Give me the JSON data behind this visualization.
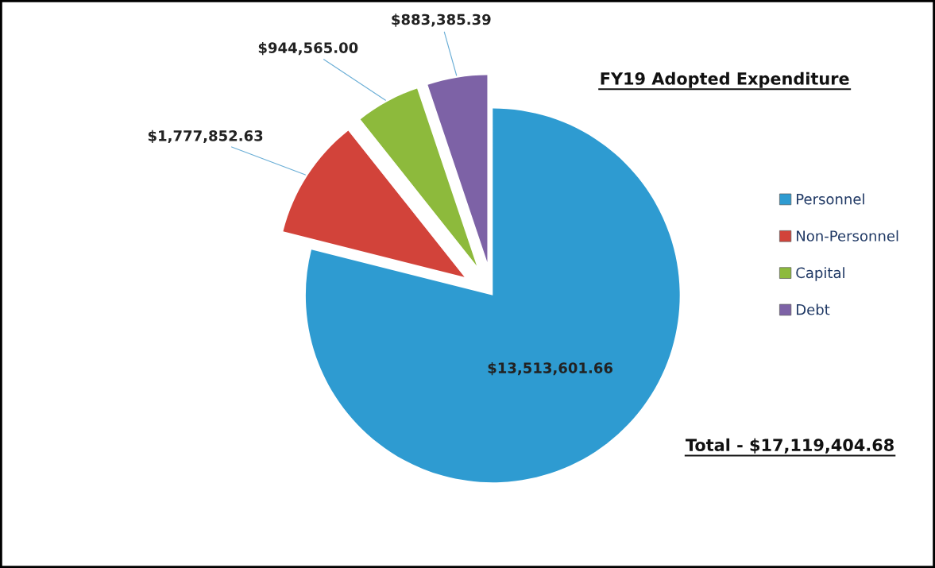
{
  "chart_data": {
    "type": "pie",
    "title": "FY19 Adopted Expenditure",
    "categories": [
      "Personnel",
      "Non-Personnel",
      "Capital",
      "Debt"
    ],
    "values": [
      13513601.66,
      1777852.63,
      944565.0,
      883385.39
    ],
    "value_labels": [
      "$13,513,601.66",
      "$1,777,852.63",
      "$944,565.00",
      "$883,385.39"
    ],
    "colors": [
      "#2e9bd1",
      "#d2433a",
      "#8dba3c",
      "#7d62a6"
    ],
    "legend": "right",
    "annotations": [
      "Total - $17,119,404.68"
    ]
  }
}
